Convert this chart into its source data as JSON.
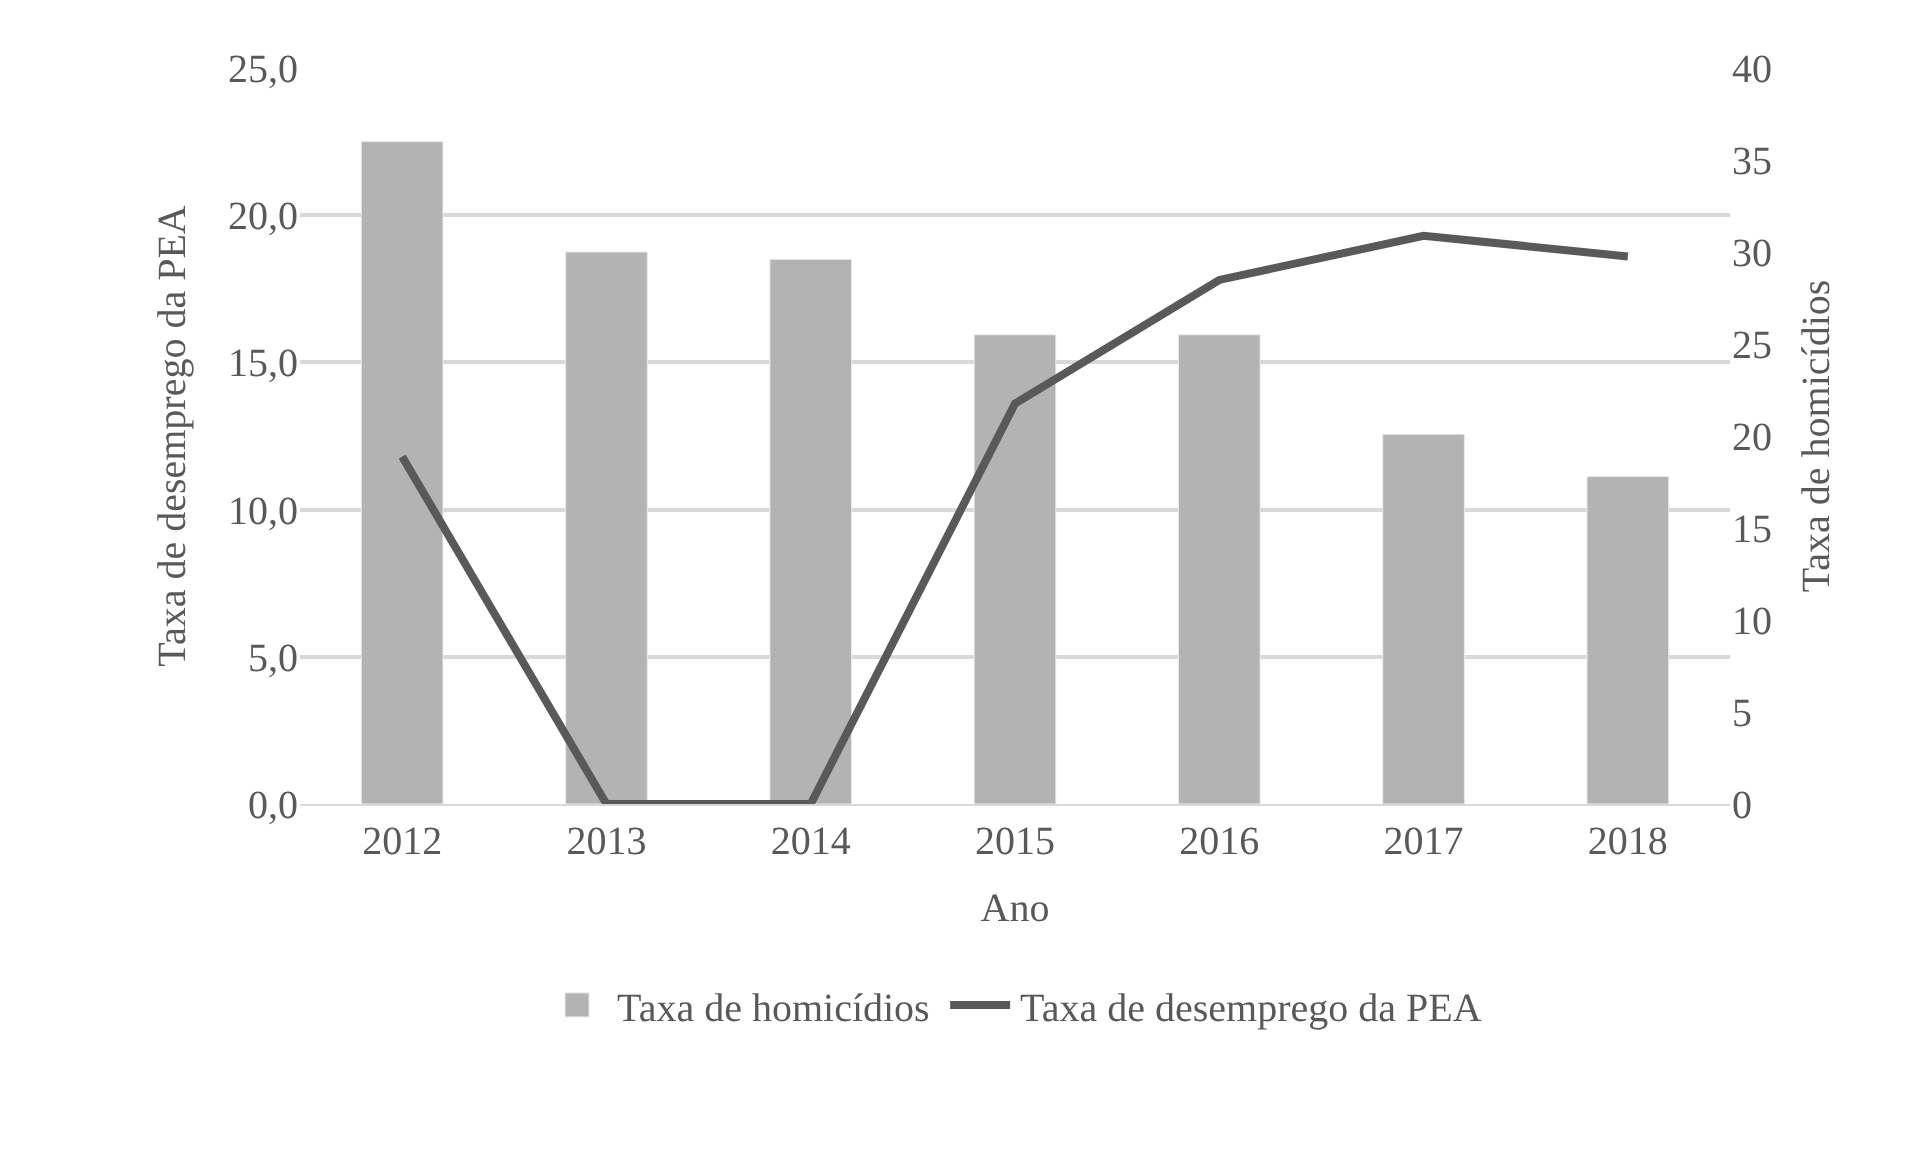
{
  "chart_data": {
    "type": "bar",
    "xlabel": "Ano",
    "ylabel": "Taxa de desemprego da PEA",
    "y2label": "Taxa de homicídios",
    "categories": [
      "2012",
      "2013",
      "2014",
      "2015",
      "2016",
      "2017",
      "2018"
    ],
    "series": [
      {
        "name": "Taxa de homicídios",
        "axis": "y2",
        "color": "#b3b3b3",
        "values": [
          36.0,
          30.0,
          29.6,
          25.5,
          25.5,
          20.1,
          17.8
        ]
      },
      {
        "name": "Taxa de desemprego da PEA",
        "type": "line",
        "axis": "y",
        "color": "#595959",
        "values": [
          11.8,
          0,
          0,
          13.6,
          17.8,
          19.3,
          18.6
        ]
      }
    ],
    "ylim": [
      0,
      25
    ],
    "yticks": [
      {
        "value": 0,
        "label": "0,0"
      },
      {
        "value": 5,
        "label": "5,0"
      },
      {
        "value": 10,
        "label": "10,0"
      },
      {
        "value": 15,
        "label": "15,0"
      },
      {
        "value": 20,
        "label": "20,0"
      },
      {
        "value": 25,
        "label": "25,0"
      }
    ],
    "y2lim": [
      0,
      40
    ],
    "y2ticks": [
      0,
      5,
      10,
      15,
      20,
      25,
      30,
      35,
      40
    ],
    "grid": "y",
    "legend": "bottom",
    "marker": "none",
    "line_style": "solid"
  }
}
